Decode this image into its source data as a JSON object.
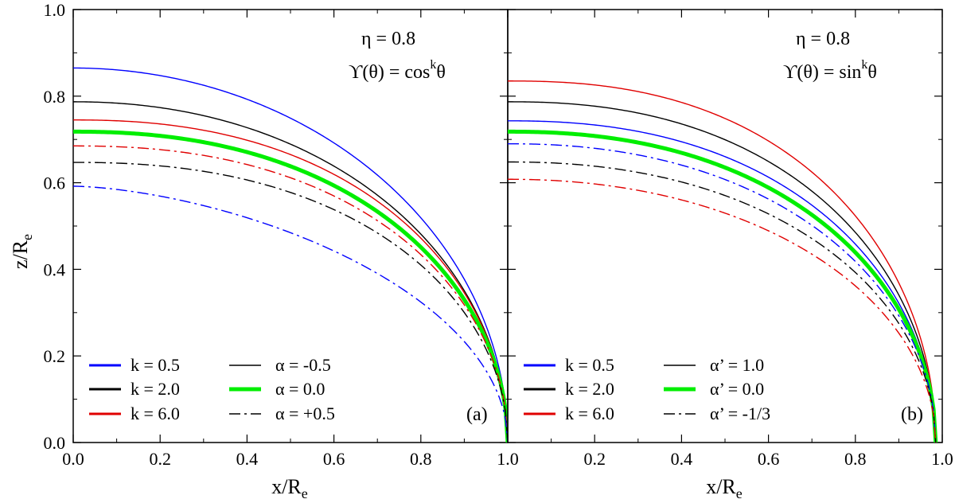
{
  "figure": {
    "ylabel": "z/R",
    "ylabel_sub": "e",
    "xlabel": "x/R",
    "xlabel_sub": "e"
  },
  "chart_data": [
    {
      "type": "line",
      "panel_label": "(a)",
      "xlabel": "x/R_e",
      "ylabel": "z/R_e",
      "xlim": [
        0.0,
        1.0
      ],
      "ylim": [
        0.0,
        1.0
      ],
      "xticks": [
        "0.0",
        "0.2",
        "0.4",
        "0.6",
        "0.8",
        "1.0"
      ],
      "yticks": [
        "0.0",
        "0.2",
        "0.4",
        "0.6",
        "0.8",
        "1.0"
      ],
      "annotation": {
        "line1": "η = 0.8",
        "line2_prefix": "ϒ(θ) = cos",
        "line2_sup": "k",
        "line2_suffix": "θ"
      },
      "legend": {
        "k_entries": [
          {
            "label": "k = 0.5",
            "color": "#0000ff"
          },
          {
            "label": "k = 2.0",
            "color": "#000000"
          },
          {
            "label": "k = 6.0",
            "color": "#e00000"
          }
        ],
        "style_entries": [
          {
            "label": "α = -0.5",
            "style": "solid",
            "color": "#000000"
          },
          {
            "label": "α =  0.0",
            "style": "thick",
            "color": "#00ee00"
          },
          {
            "label": "α = +0.5",
            "style": "dashdot",
            "color": "#000000"
          }
        ]
      },
      "series": [
        {
          "name": "k=0.5, α=-0.5",
          "color": "#0000ff",
          "style": "solid",
          "z0": 0.865,
          "x_end": 1.0,
          "p": 2.0
        },
        {
          "name": "k=2.0, α=-0.5",
          "color": "#000000",
          "style": "solid",
          "z0": 0.787,
          "x_end": 1.0,
          "p": 2.1
        },
        {
          "name": "k=6.0, α=-0.5",
          "color": "#e00000",
          "style": "solid",
          "z0": 0.745,
          "x_end": 1.0,
          "p": 2.3
        },
        {
          "name": "α=0.0",
          "color": "#00ee00",
          "style": "thick",
          "z0": 0.718,
          "x_end": 1.0,
          "p": 2.25
        },
        {
          "name": "k=6.0, α=+0.5",
          "color": "#e00000",
          "style": "dashdot",
          "z0": 0.685,
          "x_end": 1.0,
          "p": 2.3
        },
        {
          "name": "k=2.0, α=+0.5",
          "color": "#000000",
          "style": "dashdot",
          "z0": 0.647,
          "x_end": 1.0,
          "p": 2.3
        },
        {
          "name": "k=0.5, α=+0.5",
          "color": "#0000ff",
          "style": "dashdot",
          "z0": 0.592,
          "x_end": 1.0,
          "p": 1.6
        }
      ]
    },
    {
      "type": "line",
      "panel_label": "(b)",
      "xlabel": "x/R_e",
      "ylabel": "z/R_e",
      "xlim": [
        0.0,
        1.0
      ],
      "ylim": [
        0.0,
        1.0
      ],
      "xticks": [
        "0.0",
        "0.2",
        "0.4",
        "0.6",
        "0.8",
        "1.0"
      ],
      "yticks": [
        "0.0",
        "0.2",
        "0.4",
        "0.6",
        "0.8",
        "1.0"
      ],
      "annotation": {
        "line1": "η = 0.8",
        "line2_prefix": "ϒ(θ) = sin",
        "line2_sup": "k",
        "line2_suffix": "θ"
      },
      "legend": {
        "k_entries": [
          {
            "label": "k = 0.5",
            "color": "#0000ff"
          },
          {
            "label": "k = 2.0",
            "color": "#000000"
          },
          {
            "label": "k = 6.0",
            "color": "#e00000"
          }
        ],
        "style_entries": [
          {
            "label": "α’ = 1.0",
            "style": "solid",
            "color": "#000000"
          },
          {
            "label": "α’ =  0.0",
            "style": "thick",
            "color": "#00ee00"
          },
          {
            "label": "α’ = -1/3",
            "style": "dashdot",
            "color": "#000000"
          }
        ]
      },
      "series": [
        {
          "name": "k=6.0, α'=1.0",
          "color": "#e00000",
          "style": "solid",
          "z0": 0.835,
          "x_end": 0.985,
          "p": 2.4
        },
        {
          "name": "k=2.0, α'=1.0",
          "color": "#000000",
          "style": "solid",
          "z0": 0.787,
          "x_end": 0.985,
          "p": 2.3
        },
        {
          "name": "k=0.5, α'=1.0",
          "color": "#0000ff",
          "style": "solid",
          "z0": 0.743,
          "x_end": 0.985,
          "p": 2.3
        },
        {
          "name": "α'=0.0",
          "color": "#00ee00",
          "style": "thick",
          "z0": 0.718,
          "x_end": 0.985,
          "p": 2.25
        },
        {
          "name": "k=0.5, α'=-1/3",
          "color": "#0000ff",
          "style": "dashdot",
          "z0": 0.69,
          "x_end": 0.985,
          "p": 2.2
        },
        {
          "name": "k=2.0, α'=-1/3",
          "color": "#000000",
          "style": "dashdot",
          "z0": 0.648,
          "x_end": 0.985,
          "p": 2.2
        },
        {
          "name": "k=6.0, α'=-1/3",
          "color": "#e00000",
          "style": "dashdot",
          "z0": 0.608,
          "x_end": 0.985,
          "p": 2.1
        }
      ]
    }
  ]
}
